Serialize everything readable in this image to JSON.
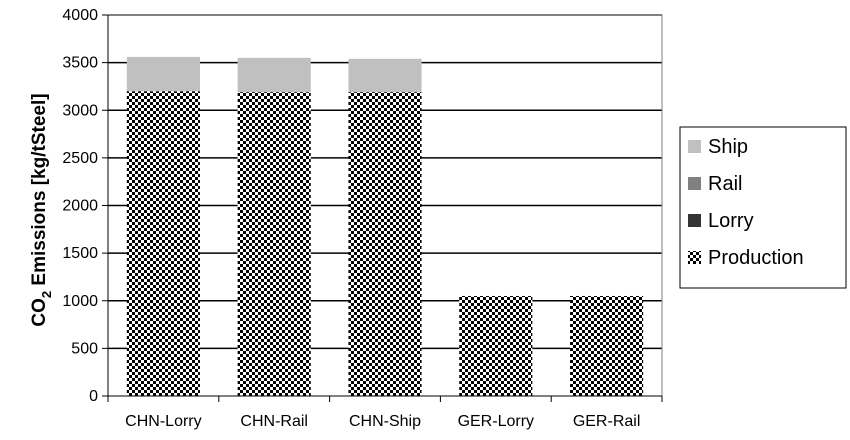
{
  "chart_data": {
    "type": "bar",
    "stacked": true,
    "categories": [
      "CHN-Lorry",
      "CHN-Rail",
      "CHN-Ship",
      "GER-Lorry",
      "GER-Rail"
    ],
    "series": [
      {
        "name": "Production",
        "values": [
          3200,
          3190,
          3190,
          1050,
          1050
        ],
        "color": "#000000",
        "pattern": "checkerboard"
      },
      {
        "name": "Lorry",
        "values": [
          0,
          0,
          0,
          0,
          0
        ],
        "color": "#333333"
      },
      {
        "name": "Rail",
        "values": [
          0,
          0,
          0,
          0,
          0
        ],
        "color": "#808080"
      },
      {
        "name": "Ship",
        "values": [
          360,
          360,
          350,
          0,
          0
        ],
        "color": "#c0c0c0"
      }
    ],
    "legend_order": [
      "Ship",
      "Rail",
      "Lorry",
      "Production"
    ],
    "ylabel_main": "CO",
    "ylabel_sub": "2",
    "ylabel_rest": " Emissions [kg/tSteel]",
    "yticks": [
      "0",
      "500",
      "1000",
      "1500",
      "2000",
      "2500",
      "3000",
      "3500",
      "4000"
    ],
    "ylim": [
      0,
      4000
    ],
    "grid": true,
    "legend_position": "right"
  }
}
